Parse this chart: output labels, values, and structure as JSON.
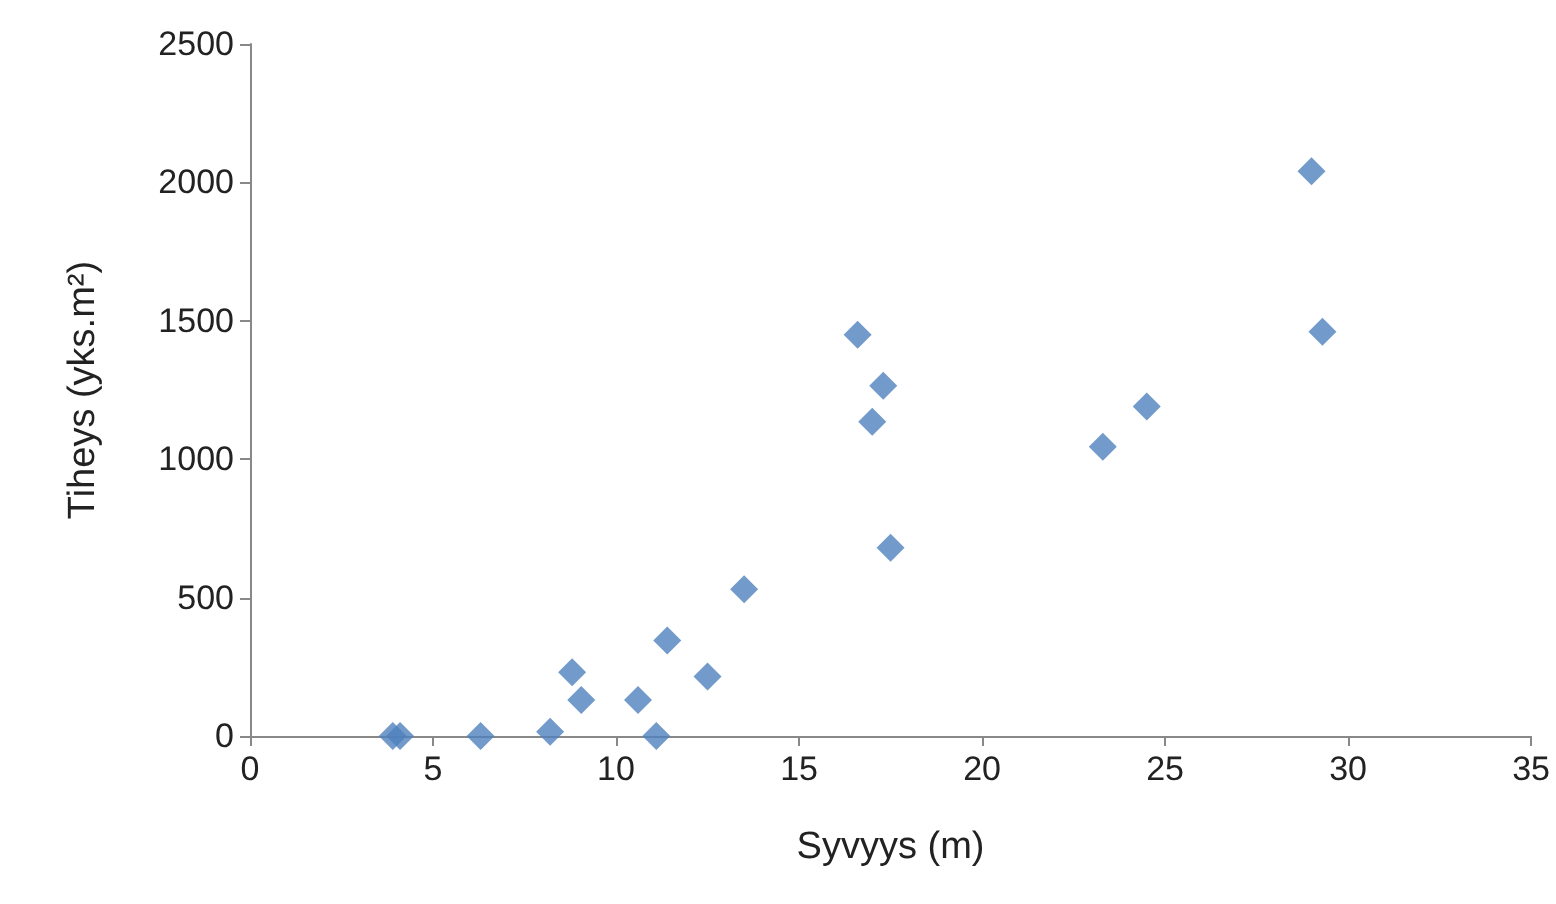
{
  "chart_data": {
    "type": "scatter",
    "xlabel": "Syvyys (m)",
    "ylabel": "Tiheys (yks.m²)",
    "x": [
      3.9,
      4.1,
      6.3,
      8.2,
      8.8,
      9.05,
      10.6,
      11.1,
      11.4,
      12.5,
      13.5,
      16.6,
      17.0,
      17.3,
      17.5,
      23.3,
      24.5,
      29.0,
      29.3
    ],
    "series": [
      {
        "color": "#4f81bd",
        "values": [
          0,
          0,
          0,
          15,
          230,
          130,
          130,
          0,
          345,
          215,
          530,
          1450,
          1135,
          1265,
          680,
          1045,
          1190,
          2040,
          1460
        ]
      }
    ],
    "xlim": [
      0,
      35
    ],
    "xticks": [
      0,
      5,
      10,
      15,
      20,
      25,
      30,
      35
    ],
    "ylim": [
      0,
      2500
    ],
    "yticks": [
      0,
      500,
      1000,
      1500,
      2000,
      2500
    ],
    "grid": false,
    "marker": "diamond"
  }
}
